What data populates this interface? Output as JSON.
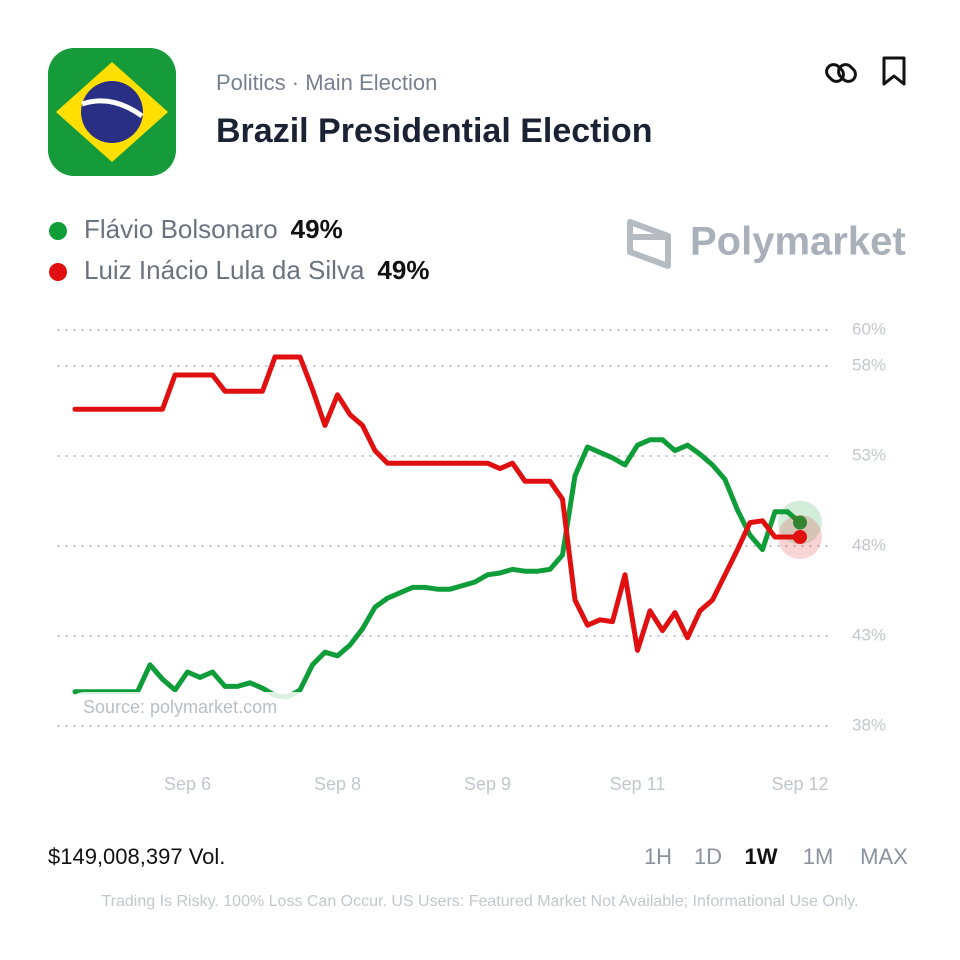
{
  "header": {
    "category": "Politics · Main Election",
    "title": "Brazil Presidential Election"
  },
  "brand": "Polymarket",
  "source": "Source: polymarket.com",
  "chart_data": {
    "type": "line",
    "grid": true,
    "categories": [
      null,
      null,
      null,
      null,
      null,
      null,
      null,
      null,
      null,
      "Sep 6",
      null,
      null,
      null,
      null,
      null,
      null,
      null,
      null,
      null,
      null,
      null,
      "Sep 8",
      null,
      null,
      null,
      null,
      null,
      null,
      null,
      null,
      null,
      null,
      null,
      "Sep 9",
      null,
      null,
      null,
      null,
      null,
      null,
      null,
      null,
      null,
      null,
      null,
      "Sep 11",
      null,
      null,
      null,
      null,
      null,
      null,
      null,
      null,
      null,
      null,
      null,
      null,
      "Sep 12"
    ],
    "series": [
      {
        "name": "Flávio Bolsonaro",
        "color": "#0f9d3a",
        "current": {
          "value": 49,
          "label": "49%"
        },
        "values": [
          39.9,
          39.9,
          39.9,
          39.9,
          39.9,
          39.9,
          41.4,
          40.6,
          40,
          41,
          40.7,
          41,
          40.2,
          40.2,
          40.4,
          40.1,
          39.7,
          39.6,
          40,
          41.4,
          42.1,
          41.9,
          42.5,
          43.4,
          44.6,
          45.1,
          45.4,
          45.7,
          45.7,
          45.6,
          45.6,
          45.8,
          46,
          46.4,
          46.5,
          46.7,
          46.6,
          46.6,
          46.7,
          47.5,
          51.9,
          53.5,
          53.2,
          52.9,
          52.5,
          53.6,
          53.9,
          53.9,
          53.3,
          53.6,
          53.1,
          52.5,
          51.7,
          50,
          48.6,
          47.8,
          49.9,
          49.9,
          49.3
        ]
      },
      {
        "name": "Luiz Inácio Lula da Silva",
        "color": "#e01010",
        "current": {
          "value": 49,
          "label": "49%"
        },
        "values": [
          55.6,
          55.6,
          55.6,
          55.6,
          55.6,
          55.6,
          55.6,
          55.6,
          57.5,
          57.5,
          57.5,
          57.5,
          56.6,
          56.6,
          56.6,
          56.6,
          58.5,
          58.5,
          58.5,
          56.7,
          54.7,
          56.4,
          55.3,
          54.7,
          53.3,
          52.6,
          52.6,
          52.6,
          52.6,
          52.6,
          52.6,
          52.6,
          52.6,
          52.6,
          52.3,
          52.6,
          51.6,
          51.6,
          51.6,
          50.6,
          45,
          43.6,
          43.9,
          43.8,
          46.4,
          42.2,
          44.4,
          43.3,
          44.3,
          42.9,
          44.4,
          45,
          46.4,
          47.8,
          49.3,
          49.4,
          48.5,
          48.5,
          48.5
        ]
      }
    ],
    "ylim": [
      38,
      60
    ],
    "yticks": [
      {
        "value": 38,
        "label": "38%"
      },
      {
        "value": 43,
        "label": "43%"
      },
      {
        "value": 48,
        "label": "48%"
      },
      {
        "value": 53,
        "label": "53%"
      },
      {
        "value": 58,
        "label": "58%"
      },
      {
        "value": 60,
        "label": "60%"
      }
    ]
  },
  "footer": {
    "volume": "$149,008,397 Vol.",
    "timeframes": [
      "1H",
      "1D",
      "1W",
      "1M",
      "MAX"
    ],
    "active_timeframe": 2,
    "disclaimer": "Trading Is Risky. 100% Loss Can Occur. US Users: Featured Market Not Available; Informational Use Only."
  }
}
